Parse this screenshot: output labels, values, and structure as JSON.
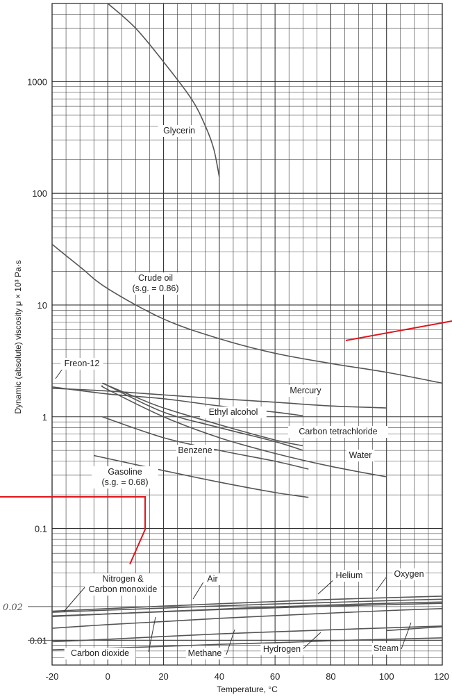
{
  "chart_data": {
    "type": "line",
    "xlabel": "Temperature, °C",
    "ylabel": "Dynamic (absolute) viscosity μ × 10³ Pa·s",
    "yscale": "log",
    "xlim": [
      -20,
      120
    ],
    "ylim": [
      0.006,
      5000
    ],
    "x_ticks": [
      "-20",
      "0",
      "20",
      "40",
      "60",
      "80",
      "100",
      "120"
    ],
    "y_ticks": [
      {
        "value": 1000,
        "label": "1000"
      },
      {
        "value": 100,
        "label": "100"
      },
      {
        "value": 10,
        "label": "10"
      },
      {
        "value": 1,
        "label": "1"
      },
      {
        "value": 0.1,
        "label": "0.1"
      },
      {
        "value": 0.01,
        "label": "0.01"
      }
    ],
    "grid": true,
    "series": [
      {
        "name": "Glycerin",
        "x": [
          0,
          10,
          20,
          30,
          35,
          38,
          40
        ],
        "y": [
          5000,
          3000,
          1500,
          700,
          400,
          250,
          140
        ]
      },
      {
        "name": "Crude oil (s.g. = 0.86)",
        "x": [
          -20,
          -10,
          0,
          20,
          40,
          60,
          80,
          100,
          120
        ],
        "y": [
          35,
          22,
          14,
          7.5,
          5,
          3.7,
          3,
          2.5,
          2
        ]
      },
      {
        "name": "Freon-12",
        "x": [
          -20,
          0,
          20,
          40,
          60,
          70
        ],
        "y": [
          1.85,
          1.6,
          1.45,
          1.25,
          1.1,
          1.02
        ]
      },
      {
        "name": "Mercury",
        "x": [
          -20,
          0,
          20,
          40,
          60,
          80,
          100
        ],
        "y": [
          1.8,
          1.7,
          1.57,
          1.45,
          1.35,
          1.25,
          1.2
        ]
      },
      {
        "name": "Ethyl alcohol",
        "x": [
          -2,
          10,
          20,
          40,
          60,
          70
        ],
        "y": [
          2,
          1.5,
          1.2,
          0.85,
          0.62,
          0.55
        ]
      },
      {
        "name": "Carbon tetrachloride",
        "x": [
          0,
          20,
          40,
          60,
          70
        ],
        "y": [
          1.9,
          1.1,
          0.8,
          0.6,
          0.5
        ]
      },
      {
        "name": "Water",
        "x": [
          -2,
          0,
          20,
          40,
          60,
          80,
          100
        ],
        "y": [
          1.9,
          1.75,
          1.0,
          0.65,
          0.47,
          0.36,
          0.29
        ]
      },
      {
        "name": "Benzene",
        "x": [
          -2,
          20,
          40,
          60,
          72
        ],
        "y": [
          1.0,
          0.65,
          0.5,
          0.4,
          0.34
        ]
      },
      {
        "name": "Gasoline (s.g. = 0.68)",
        "x": [
          -5,
          20,
          40,
          60,
          72
        ],
        "y": [
          0.45,
          0.33,
          0.26,
          0.21,
          0.19
        ]
      },
      {
        "name": "Nitrogen & Carbon monoxide",
        "x": [
          -20,
          0,
          20,
          40,
          60,
          80,
          100,
          120
        ],
        "y": [
          0.0165,
          0.0172,
          0.018,
          0.0188,
          0.0195,
          0.0202,
          0.0208,
          0.0214
        ]
      },
      {
        "name": "Air",
        "x": [
          -20,
          0,
          20,
          40,
          60,
          80,
          100,
          120
        ],
        "y": [
          0.0163,
          0.0172,
          0.0181,
          0.019,
          0.0199,
          0.0207,
          0.0214,
          0.022
        ]
      },
      {
        "name": "Helium",
        "x": [
          -20,
          0,
          20,
          40,
          60,
          80,
          100,
          120
        ],
        "y": [
          0.0178,
          0.0186,
          0.0194,
          0.0203,
          0.0211,
          0.0218,
          0.0226,
          0.0233
        ]
      },
      {
        "name": "Oxygen",
        "x": [
          -20,
          0,
          20,
          40,
          60,
          80,
          100,
          120
        ],
        "y": [
          0.0182,
          0.0192,
          0.0202,
          0.0212,
          0.0222,
          0.0232,
          0.024,
          0.0248
        ]
      },
      {
        "name": "Carbon dioxide",
        "x": [
          -20,
          0,
          20,
          40,
          60,
          80,
          100,
          120
        ],
        "y": [
          0.0128,
          0.0138,
          0.0147,
          0.0157,
          0.0166,
          0.0175,
          0.0184,
          0.0192
        ]
      },
      {
        "name": "Methane",
        "x": [
          -20,
          0,
          20,
          40,
          60,
          80,
          100,
          120
        ],
        "y": [
          0.0097,
          0.0102,
          0.0108,
          0.0114,
          0.0119,
          0.0124,
          0.0129,
          0.0134
        ]
      },
      {
        "name": "Hydrogen",
        "x": [
          -20,
          0,
          20,
          40,
          60,
          80,
          100,
          120
        ],
        "y": [
          0.0082,
          0.0085,
          0.0088,
          0.0092,
          0.0095,
          0.0099,
          0.0102,
          0.0105
        ]
      },
      {
        "name": "Steam",
        "x": [
          100,
          110,
          120
        ],
        "y": [
          0.0122,
          0.0127,
          0.0132
        ]
      }
    ],
    "labels": [
      {
        "series": "Glycerin",
        "lines": [
          "Glycerin"
        ]
      },
      {
        "series": "Crude oil (s.g. = 0.86)",
        "lines": [
          "Crude oil",
          "(s.g. = 0.86)"
        ]
      },
      {
        "series": "Freon-12",
        "lines": [
          "Freon-12"
        ]
      },
      {
        "series": "Mercury",
        "lines": [
          "Mercury"
        ]
      },
      {
        "series": "Ethyl alcohol",
        "lines": [
          "Ethyl alcohol"
        ]
      },
      {
        "series": "Carbon tetrachloride",
        "lines": [
          "Carbon tetrachloride"
        ]
      },
      {
        "series": "Benzene",
        "lines": [
          "Benzene"
        ]
      },
      {
        "series": "Water",
        "lines": [
          "Water"
        ]
      },
      {
        "series": "Gasoline (s.g. = 0.68)",
        "lines": [
          "Gasoline",
          "(s.g. = 0.68)"
        ]
      },
      {
        "series": "Nitrogen & Carbon monoxide",
        "lines": [
          "Nitrogen &",
          "Carbon monoxide"
        ]
      },
      {
        "series": "Air",
        "lines": [
          "Air"
        ]
      },
      {
        "series": "Helium",
        "lines": [
          "Helium"
        ]
      },
      {
        "series": "Oxygen",
        "lines": [
          "Oxygen"
        ]
      },
      {
        "series": "Carbon dioxide",
        "lines": [
          "Carbon dioxide"
        ]
      },
      {
        "series": "Methane",
        "lines": [
          "Methane"
        ]
      },
      {
        "series": "Hydrogen",
        "lines": [
          "Hydrogen"
        ]
      },
      {
        "series": "Steam",
        "lines": [
          "Steam"
        ]
      }
    ],
    "handwritten_annotation": "0.02",
    "annotation_color": "#e0161b",
    "line_color": "#555555",
    "grid_color": "#333333"
  }
}
